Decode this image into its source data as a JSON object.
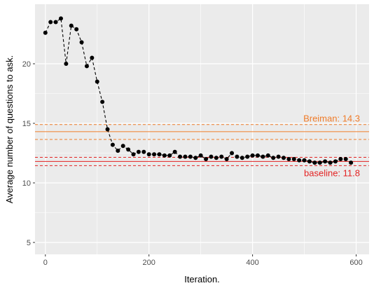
{
  "chart_data": {
    "type": "line",
    "title": "",
    "xlabel": "Iteration.",
    "ylabel": "Average number of questions to ask.",
    "xlim": [
      -20,
      625
    ],
    "ylim": [
      4,
      25
    ],
    "xticks": [
      0,
      200,
      400,
      600
    ],
    "yticks": [
      5,
      10,
      15,
      20
    ],
    "grid": true,
    "background": "#ebebeb",
    "series": [
      {
        "line_style": "dashed",
        "marker": "circle",
        "color": "#000000",
        "x": [
          0,
          10,
          20,
          30,
          40,
          50,
          60,
          70,
          80,
          90,
          100,
          110,
          120,
          130,
          140,
          150,
          160,
          170,
          180,
          190,
          200,
          210,
          220,
          230,
          240,
          250,
          260,
          270,
          280,
          290,
          300,
          310,
          320,
          330,
          340,
          350,
          360,
          370,
          380,
          390,
          400,
          410,
          420,
          430,
          440,
          450,
          460,
          470,
          480,
          490,
          500,
          510,
          520,
          530,
          540,
          550,
          560,
          570,
          580,
          590
        ],
        "y": [
          22.6,
          23.5,
          23.5,
          23.8,
          20.0,
          23.2,
          22.9,
          21.8,
          19.8,
          20.5,
          18.5,
          16.8,
          14.5,
          13.2,
          12.7,
          13.1,
          12.8,
          12.4,
          12.6,
          12.6,
          12.4,
          12.4,
          12.4,
          12.3,
          12.3,
          12.6,
          12.2,
          12.2,
          12.2,
          12.1,
          12.3,
          12.0,
          12.2,
          12.1,
          12.2,
          12.0,
          12.5,
          12.2,
          12.1,
          12.2,
          12.3,
          12.3,
          12.2,
          12.3,
          12.1,
          12.2,
          12.1,
          12.0,
          12.0,
          11.9,
          11.9,
          11.8,
          11.7,
          11.7,
          11.8,
          11.7,
          11.8,
          12.0,
          12.0,
          11.7
        ]
      }
    ],
    "reference_lines": [
      {
        "label": "Breiman: 14.3",
        "value": 14.3,
        "band": [
          13.65,
          14.9
        ],
        "color": "#f07c2a"
      },
      {
        "label": "baseline: 11.8",
        "value": 11.8,
        "band": [
          11.45,
          12.15
        ],
        "color": "#e32222"
      }
    ]
  }
}
